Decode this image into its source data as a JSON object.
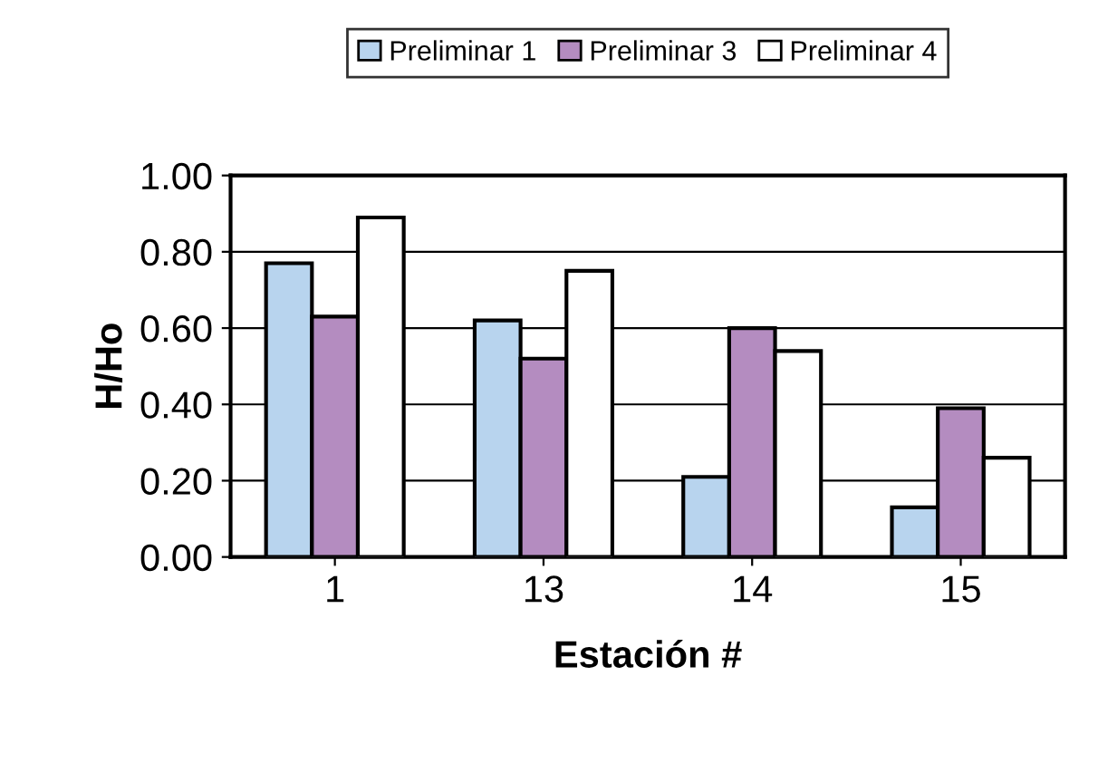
{
  "chart_data": {
    "type": "bar",
    "xlabel": "Estación #",
    "ylabel": "H/Ho",
    "categories": [
      "1",
      "13",
      "14",
      "15"
    ],
    "series": [
      {
        "name": "Preliminar 1",
        "color": "#b8d4ee",
        "values": [
          0.77,
          0.62,
          0.21,
          0.13
        ]
      },
      {
        "name": "Preliminar 3",
        "color": "#b48cc0",
        "values": [
          0.63,
          0.52,
          0.6,
          0.39
        ]
      },
      {
        "name": "Preliminar 4",
        "color": "#ffffff",
        "values": [
          0.89,
          0.75,
          0.54,
          0.26
        ]
      }
    ],
    "ylim": [
      0,
      1
    ],
    "yticks": [
      {
        "value": 0,
        "label": "0.00"
      },
      {
        "value": 0.2,
        "label": "0.20"
      },
      {
        "value": 0.4,
        "label": "0.40"
      },
      {
        "value": 0.6,
        "label": "0.60"
      },
      {
        "value": 0.8,
        "label": "0.80"
      },
      {
        "value": 1,
        "label": "1.00"
      }
    ],
    "grid": "y",
    "legend": "top"
  }
}
